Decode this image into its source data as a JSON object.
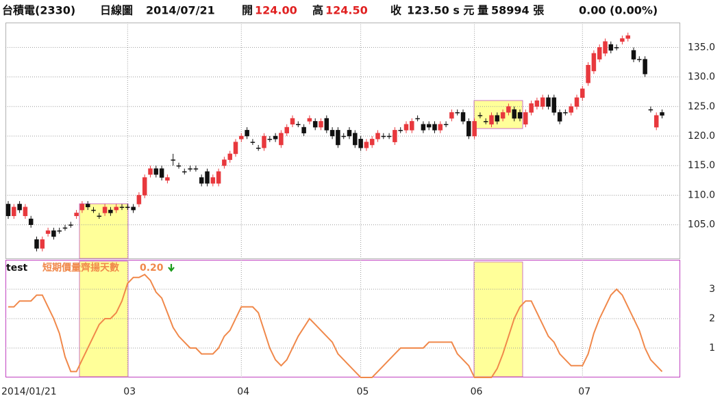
{
  "header": {
    "stock": "台積電(2330)",
    "period": "日線圖",
    "date": "2014/07/21",
    "open_label": "開",
    "open": "124.00",
    "high_label": "高",
    "high": "124.50",
    "close_label": "收",
    "close": "123.50 s 元",
    "volume_label": "量",
    "volume": "58994 張",
    "change": "0.00 (0.00%)"
  },
  "chart_data": [
    {
      "type": "candlestick",
      "up_color": "#e8383d",
      "down_color": "#111111",
      "grid": true,
      "open": [
        108.5,
        106.5,
        108.5,
        106.5,
        106,
        102.5,
        101,
        103.5,
        104,
        104,
        104.5,
        105,
        106.5,
        107.5,
        108.5,
        107.5,
        106.5,
        107,
        107.5,
        107.5,
        108,
        108,
        108,
        108.5,
        110,
        113.5,
        114.5,
        114.5,
        112.5,
        116,
        115,
        114,
        114.5,
        114.5,
        113,
        114,
        112,
        112,
        115,
        116,
        117,
        119.5,
        121,
        119,
        118,
        118,
        119.5,
        120,
        118.5,
        120.5,
        122,
        122,
        121.5,
        122.5,
        122.5,
        121.5,
        123,
        121,
        121,
        120,
        121,
        120.5,
        119.5,
        118,
        118.5,
        119.5,
        120,
        120,
        119,
        121,
        121,
        121,
        123,
        122,
        122,
        122,
        121,
        122,
        123,
        124,
        124,
        122.5,
        120,
        123.5,
        122.5,
        122,
        123.5,
        123,
        124,
        124.5,
        124,
        122,
        124,
        125,
        125,
        126.5,
        126.5,
        124,
        124,
        124,
        125,
        126.5,
        129,
        131,
        133,
        134,
        135.5,
        135,
        136,
        136.5,
        134.5,
        133,
        133,
        124.5,
        121.5,
        124
      ],
      "high": [
        109,
        108.5,
        109,
        108.5,
        106.5,
        103,
        103,
        104.5,
        104.5,
        104.5,
        105,
        105.5,
        107.5,
        109,
        109,
        108,
        107,
        108.5,
        108,
        108.5,
        108.5,
        108.5,
        108.5,
        110.5,
        113.5,
        115,
        115,
        115,
        113.5,
        117,
        115.5,
        114.5,
        115,
        115,
        113.5,
        114.5,
        113.5,
        114.5,
        116.5,
        117.5,
        119.5,
        120.5,
        121.5,
        119.5,
        118.5,
        120.5,
        120,
        120.5,
        121,
        122,
        123.5,
        122.5,
        122,
        123.5,
        123,
        123,
        123.5,
        121.5,
        121.5,
        120.5,
        121.5,
        121,
        120,
        119.5,
        120,
        121,
        120.5,
        120.5,
        121.5,
        121.5,
        122.5,
        123,
        123.5,
        122.5,
        122.5,
        122.5,
        122.5,
        122.5,
        124.5,
        124.5,
        124.5,
        123,
        123,
        124,
        123,
        124,
        124,
        124.5,
        125.5,
        125,
        124.5,
        124.5,
        126,
        126.5,
        127,
        127,
        127,
        124.5,
        124.5,
        125.5,
        127,
        128.5,
        132.5,
        134.5,
        135.5,
        136.5,
        136,
        135.5,
        137,
        137.5,
        135,
        133.5,
        133.5,
        125,
        124,
        124.5
      ],
      "low": [
        106,
        106,
        107,
        106,
        104.5,
        100.5,
        100.5,
        103,
        102.5,
        103.5,
        104,
        104.5,
        106,
        107,
        107.5,
        107,
        106,
        106.5,
        106.5,
        107,
        107.5,
        107.5,
        107,
        108,
        109.5,
        113,
        113,
        112.5,
        112,
        115,
        114.5,
        113.5,
        114,
        114,
        111.5,
        111.5,
        111.5,
        111.5,
        114.5,
        115.5,
        116.5,
        119,
        119.5,
        118.5,
        117.5,
        117.5,
        119,
        119,
        118,
        120,
        121.5,
        121.5,
        120,
        122,
        121,
        121,
        120.5,
        119.5,
        118,
        119.5,
        119.5,
        118,
        117.5,
        117.5,
        118,
        119,
        119.5,
        119.5,
        118.5,
        120.5,
        120.5,
        120.5,
        122.5,
        120.5,
        121,
        120.5,
        120.5,
        121.5,
        122.5,
        123.5,
        122,
        119.5,
        119.5,
        123,
        122,
        121.5,
        122,
        122.5,
        123.5,
        122.5,
        122.5,
        121.5,
        123.5,
        124.5,
        124.5,
        124.5,
        123.5,
        122,
        123.5,
        123.5,
        124.5,
        126,
        128.5,
        130.5,
        132.5,
        133.5,
        134,
        134.5,
        135.5,
        136,
        132.5,
        132.5,
        130,
        124,
        121,
        123
      ],
      "close": [
        106.5,
        108,
        107.5,
        108,
        105,
        101,
        102.5,
        104,
        103,
        104,
        104.5,
        105,
        107,
        108.5,
        108,
        107.5,
        106.5,
        108,
        107,
        108,
        108,
        108,
        107.5,
        110,
        113,
        114.5,
        113.5,
        113,
        113,
        116,
        115,
        114,
        114.5,
        114.5,
        112,
        112,
        113,
        114,
        116,
        117,
        119,
        120,
        120,
        119,
        118,
        120,
        119.5,
        119.5,
        120.5,
        121.5,
        123,
        122,
        120.5,
        123,
        121.5,
        122.5,
        121,
        120,
        118.5,
        120,
        120,
        118.5,
        118,
        119,
        119.5,
        120.5,
        120,
        120,
        121,
        121,
        122,
        122.5,
        123,
        121,
        121.5,
        121,
        122,
        122,
        124,
        124,
        122.5,
        120,
        122.5,
        123.5,
        122.5,
        123.5,
        122.5,
        124,
        125,
        123,
        123,
        124,
        125.5,
        126,
        126.5,
        125,
        124,
        122.5,
        124,
        125,
        126.5,
        128,
        132,
        134,
        135,
        136,
        134.5,
        135,
        136.5,
        137,
        133,
        133,
        130.5,
        124.5,
        123.5,
        123.5
      ],
      "ylim": [
        99.3,
        139.2
      ],
      "yticks": [
        {
          "value": 105,
          "label": "105.0"
        },
        {
          "value": 110,
          "label": "110.0"
        },
        {
          "value": 115,
          "label": "115.0"
        },
        {
          "value": 120,
          "label": "120.0"
        },
        {
          "value": 125,
          "label": "125.0"
        },
        {
          "value": 130,
          "label": "130.0"
        },
        {
          "value": 135,
          "label": "135.0"
        }
      ]
    },
    {
      "type": "line",
      "title": "test",
      "value_label": "0.20",
      "grid": true,
      "categories": [
        "2014/01/21",
        null,
        null,
        null,
        null,
        null,
        null,
        null,
        null,
        null,
        null,
        null,
        null,
        null,
        null,
        null,
        null,
        null,
        null,
        null,
        null,
        "03",
        null,
        null,
        null,
        null,
        null,
        null,
        null,
        null,
        null,
        null,
        null,
        null,
        null,
        null,
        null,
        null,
        null,
        null,
        null,
        "04",
        null,
        null,
        null,
        null,
        null,
        null,
        null,
        null,
        null,
        null,
        null,
        null,
        null,
        null,
        null,
        null,
        null,
        null,
        null,
        null,
        "05",
        null,
        null,
        null,
        null,
        null,
        null,
        null,
        null,
        null,
        null,
        null,
        null,
        null,
        null,
        null,
        null,
        null,
        null,
        null,
        "06",
        null,
        null,
        null,
        null,
        null,
        null,
        null,
        null,
        null,
        null,
        null,
        null,
        null,
        null,
        null,
        null,
        null,
        null,
        "07",
        null,
        null,
        null,
        null,
        null,
        null,
        null,
        null,
        null,
        null,
        null,
        null,
        null,
        null
      ],
      "series": [
        {
          "name": "短期價量齊揚天數",
          "color": "#f0884a",
          "values": [
            2.4,
            2.4,
            2.6,
            2.6,
            2.6,
            2.8,
            2.8,
            2.4,
            2.0,
            1.5,
            0.7,
            0.2,
            0.2,
            0.6,
            1.0,
            1.4,
            1.8,
            2.0,
            2.0,
            2.2,
            2.6,
            3.2,
            3.4,
            3.4,
            3.5,
            3.3,
            2.9,
            2.7,
            2.2,
            1.7,
            1.4,
            1.2,
            1.0,
            1.0,
            0.8,
            0.8,
            0.8,
            1.0,
            1.4,
            1.6,
            2.0,
            2.4,
            2.4,
            2.4,
            2.2,
            1.6,
            1.0,
            0.6,
            0.4,
            0.6,
            1.0,
            1.4,
            1.7,
            2.0,
            1.8,
            1.6,
            1.4,
            1.2,
            0.8,
            0.6,
            0.4,
            0.2,
            0.0,
            0.0,
            0.0,
            0.2,
            0.4,
            0.6,
            0.8,
            1.0,
            1.0,
            1.0,
            1.0,
            1.0,
            1.2,
            1.2,
            1.2,
            1.2,
            1.2,
            0.8,
            0.6,
            0.4,
            0.0,
            0.0,
            0.0,
            0.0,
            0.3,
            0.8,
            1.4,
            2.0,
            2.4,
            2.6,
            2.6,
            2.2,
            1.8,
            1.4,
            1.2,
            0.8,
            0.6,
            0.4,
            0.4,
            0.4,
            0.8,
            1.5,
            2.0,
            2.4,
            2.8,
            3.0,
            2.8,
            2.4,
            2.0,
            1.6,
            1.0,
            0.6,
            0.4,
            0.2
          ]
        }
      ],
      "ylim": [
        0,
        4
      ],
      "yticks": [
        1,
        2,
        3
      ]
    }
  ]
}
